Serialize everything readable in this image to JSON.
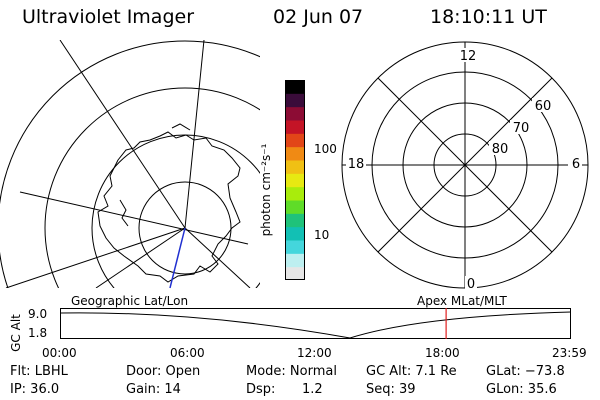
{
  "header": {
    "instrument": "Ultraviolet Imager",
    "date": "02 Jun 07",
    "time": "18:10:11 UT"
  },
  "colorbar": {
    "unit_label": "photon cm⁻²s⁻¹",
    "ticks": [
      "100",
      "10"
    ],
    "colors": [
      "#e6e6e6",
      "#bdeff0",
      "#44d6dc",
      "#12c0b4",
      "#1fc27a",
      "#5fdc28",
      "#a9ec0c",
      "#e7e912",
      "#f0c014",
      "#f08a14",
      "#e24618",
      "#c41426",
      "#8c0c34",
      "#3a0c3a",
      "#000000"
    ]
  },
  "polar": {
    "labels": {
      "top": "12",
      "bottom": "0",
      "left": "18",
      "right": "6",
      "r60": "60",
      "r70": "70",
      "r80": "80"
    }
  },
  "panels": {
    "left": "Geographic Lat/Lon",
    "right": "Apex MLat/MLT"
  },
  "timeline": {
    "ylabel": "GC Alt",
    "ymax": "9.0",
    "ymin": "1.8",
    "xticks": [
      "00:00",
      "06:00",
      "12:00",
      "18:00",
      "23:59"
    ],
    "marker_color": "#e02020",
    "marker_time_hours": 18.17
  },
  "info": {
    "row1": {
      "filter": "Flt: LBHL",
      "door": "Door: Open",
      "mode": "Mode: Normal",
      "gcalt": "GC Alt: 7.1 Re",
      "glat": "GLat: −73.8"
    },
    "row2": {
      "ip": "IP: 36.0",
      "gain": "Gain: 14",
      "dsp_label": "Dsp:",
      "dsp_value": "1.2",
      "seq": "Seq: 39",
      "glon": "GLon:  35.6"
    }
  }
}
